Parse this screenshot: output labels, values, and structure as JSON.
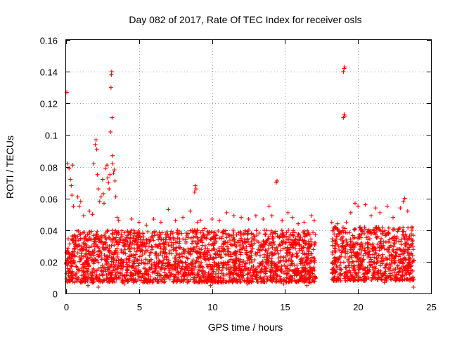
{
  "chart_data": {
    "type": "scatter",
    "title": "Day 082 of 2017, Rate Of TEC Index for receiver osls",
    "xlabel": "GPS time / hours",
    "ylabel": "ROTI / TECUs",
    "xlim": [
      0,
      25
    ],
    "ylim": [
      0,
      0.16
    ],
    "x_ticks": [
      0,
      5,
      10,
      15,
      20,
      25
    ],
    "y_ticks": [
      0,
      0.02,
      0.04,
      0.06,
      0.08,
      0.1,
      0.12,
      0.14,
      0.16
    ],
    "grid": true,
    "marker": "+",
    "series": [
      {
        "color": "#ff0000",
        "points": [
          [
            0.05,
            0.127
          ],
          [
            0.1,
            0.082
          ],
          [
            0.2,
            0.079
          ],
          [
            0.3,
            0.072
          ],
          [
            0.35,
            0.068
          ],
          [
            0.4,
            0.062
          ],
          [
            0.45,
            0.081
          ],
          [
            0.5,
            0.055
          ],
          [
            0.8,
            0.061
          ],
          [
            0.9,
            0.055
          ],
          [
            1.0,
            0.058
          ],
          [
            1.2,
            0.049
          ],
          [
            1.6,
            0.052
          ],
          [
            1.8,
            0.05
          ],
          [
            1.9,
            0.082
          ],
          [
            2.0,
            0.094
          ],
          [
            2.05,
            0.097
          ],
          [
            2.1,
            0.091
          ],
          [
            2.15,
            0.075
          ],
          [
            2.2,
            0.066
          ],
          [
            2.3,
            0.058
          ],
          [
            2.4,
            0.061
          ],
          [
            2.5,
            0.072
          ],
          [
            2.55,
            0.063
          ],
          [
            2.6,
            0.057
          ],
          [
            2.7,
            0.079
          ],
          [
            2.8,
            0.081
          ],
          [
            2.85,
            0.073
          ],
          [
            2.9,
            0.07
          ],
          [
            2.95,
            0.066
          ],
          [
            3.0,
            0.075
          ],
          [
            3.05,
            0.102
          ],
          [
            3.08,
            0.13
          ],
          [
            3.1,
            0.138
          ],
          [
            3.12,
            0.14
          ],
          [
            3.15,
            0.111
          ],
          [
            3.18,
            0.087
          ],
          [
            3.2,
            0.082
          ],
          [
            3.25,
            0.076
          ],
          [
            3.3,
            0.078
          ],
          [
            3.35,
            0.071
          ],
          [
            3.4,
            0.061
          ],
          [
            3.5,
            0.048
          ],
          [
            3.6,
            0.046
          ],
          [
            4.5,
            0.047
          ],
          [
            5.0,
            0.045
          ],
          [
            5.5,
            0.043
          ],
          [
            6.0,
            0.047
          ],
          [
            6.5,
            0.045
          ],
          [
            7.0,
            0.053
          ],
          [
            7.5,
            0.046
          ],
          [
            8.0,
            0.048
          ],
          [
            8.5,
            0.052
          ],
          [
            8.8,
            0.064
          ],
          [
            8.85,
            0.068
          ],
          [
            8.9,
            0.066
          ],
          [
            9.0,
            0.045
          ],
          [
            9.2,
            0.046
          ],
          [
            9.5,
            0.041
          ],
          [
            10.0,
            0.047
          ],
          [
            10.5,
            0.046
          ],
          [
            11.0,
            0.051
          ],
          [
            11.5,
            0.049
          ],
          [
            12.0,
            0.048
          ],
          [
            12.5,
            0.047
          ],
          [
            13.0,
            0.049
          ],
          [
            13.5,
            0.047
          ],
          [
            13.9,
            0.055
          ],
          [
            14.1,
            0.049
          ],
          [
            14.4,
            0.07
          ],
          [
            14.45,
            0.071
          ],
          [
            14.8,
            0.046
          ],
          [
            15.2,
            0.051
          ],
          [
            15.5,
            0.048
          ],
          [
            15.9,
            0.044
          ],
          [
            16.3,
            0.045
          ],
          [
            16.8,
            0.049
          ],
          [
            17.0,
            0.046
          ],
          [
            18.2,
            0.045
          ],
          [
            18.6,
            0.044
          ],
          [
            19.0,
            0.14
          ],
          [
            19.05,
            0.142
          ],
          [
            19.1,
            0.143
          ],
          [
            19.0,
            0.111
          ],
          [
            19.05,
            0.113
          ],
          [
            19.1,
            0.112
          ],
          [
            19.2,
            0.045
          ],
          [
            19.5,
            0.051
          ],
          [
            19.8,
            0.057
          ],
          [
            20.0,
            0.055
          ],
          [
            20.5,
            0.056
          ],
          [
            20.9,
            0.049
          ],
          [
            21.2,
            0.054
          ],
          [
            21.5,
            0.051
          ],
          [
            22.0,
            0.055
          ],
          [
            22.4,
            0.048
          ],
          [
            22.9,
            0.054
          ],
          [
            23.1,
            0.058
          ],
          [
            23.2,
            0.06
          ],
          [
            23.4,
            0.052
          ],
          [
            23.7,
            0.042
          ],
          [
            23.8,
            0.004
          ],
          [
            1.5,
            0.005
          ],
          [
            2.2,
            0.004
          ],
          [
            4.0,
            0.006
          ],
          [
            6.7,
            0.007
          ],
          [
            9.9,
            0.005
          ],
          [
            12.4,
            0.006
          ],
          [
            14.9,
            0.006
          ],
          [
            16.5,
            0.005
          ],
          [
            18.5,
            0.008
          ],
          [
            21.8,
            0.007
          ]
        ]
      }
    ],
    "dense_band": {
      "segments": [
        {
          "x_start": 0.0,
          "x_end": 17.1,
          "y_min": 0.007,
          "y_max": 0.04
        },
        {
          "x_start": 18.2,
          "x_end": 23.85,
          "y_min": 0.008,
          "y_max": 0.042
        }
      ]
    }
  }
}
